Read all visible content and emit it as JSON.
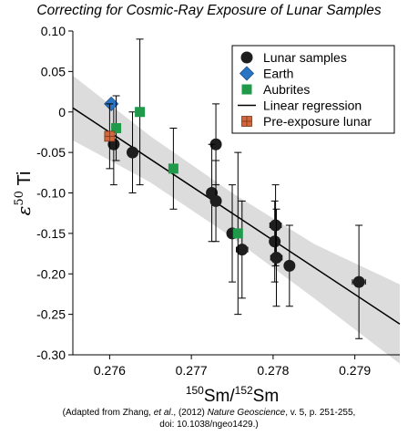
{
  "chart_data": {
    "type": "scatter",
    "title": "Correcting for Cosmic-Ray Exposure of Lunar Samples",
    "ylabel": "ε50Ti",
    "ylabel_parts": {
      "base": "ε",
      "sup": "50",
      "tail": "Ti"
    },
    "xlabel": "150Sm/152Sm",
    "xlabel_parts": {
      "sup1": "150",
      "mid": "Sm/",
      "sup2": "152",
      "tail": "Sm"
    },
    "xlim": [
      0.27555,
      0.27955
    ],
    "ylim": [
      -0.3,
      0.1
    ],
    "x_ticks": [
      "0.276",
      "0.277",
      "0.278",
      "0.279"
    ],
    "x_tick_values": [
      0.276,
      0.277,
      0.278,
      0.279
    ],
    "y_ticks": [
      "0.10",
      "0.05",
      "0",
      "-0.05",
      "-0.10",
      "-0.15",
      "-0.20",
      "-0.25",
      "-0.30"
    ],
    "y_tick_values": [
      0.1,
      0.05,
      0,
      -0.05,
      -0.1,
      -0.15,
      -0.2,
      -0.25,
      -0.3
    ],
    "legend_position": "top-right",
    "legend": [
      {
        "label": "Lunar samples",
        "marker": "circle",
        "color": "#1e1e1e"
      },
      {
        "label": "Earth",
        "marker": "diamond",
        "color": "#2a74c4"
      },
      {
        "label": "Aubrites",
        "marker": "square",
        "color": "#1f9a4a"
      },
      {
        "label": "Linear regression",
        "marker": "line",
        "color": "#000000"
      },
      {
        "label": "Pre-exposure lunar",
        "marker": "gridsquare",
        "color": "#d2673e"
      }
    ],
    "regression": {
      "x": [
        0.27555,
        0.27955
      ],
      "y": [
        0.005,
        -0.262
      ]
    },
    "confidence_band": {
      "x": [
        0.27555,
        0.2765,
        0.2775,
        0.2785,
        0.27955
      ],
      "upper": [
        0.045,
        -0.03,
        -0.1,
        -0.163,
        -0.213
      ],
      "lower": [
        -0.035,
        -0.087,
        -0.155,
        -0.23,
        -0.311
      ],
      "color": "#dcdcdc"
    },
    "series": [
      {
        "name": "Lunar samples",
        "marker": "circle",
        "color": "#1e1e1e",
        "points": [
          {
            "x": 0.27605,
            "y": -0.04,
            "yerr": 0.05
          },
          {
            "x": 0.27628,
            "y": -0.05,
            "yerr": 0.05,
            "xerr": 6e-05
          },
          {
            "x": 0.2773,
            "y": -0.04,
            "yerr": 0.05
          },
          {
            "x": 0.27725,
            "y": -0.1,
            "yerr": 0.06
          },
          {
            "x": 0.2773,
            "y": -0.11,
            "yerr": 0.05
          },
          {
            "x": 0.2775,
            "y": -0.15,
            "yerr": 0.06
          },
          {
            "x": 0.27762,
            "y": -0.17,
            "yerr": 0.06,
            "xerr": 7e-05
          },
          {
            "x": 0.27802,
            "y": -0.16,
            "yerr": 0.05
          },
          {
            "x": 0.27803,
            "y": -0.14,
            "yerr": 0.05,
            "xerr": 7e-05
          },
          {
            "x": 0.27804,
            "y": -0.18,
            "yerr": 0.06,
            "xerr": 7e-05
          },
          {
            "x": 0.2782,
            "y": -0.19,
            "yerr": 0.05
          },
          {
            "x": 0.27905,
            "y": -0.21,
            "yerr": 0.07,
            "xerr": 8e-05
          }
        ]
      },
      {
        "name": "Earth",
        "marker": "diamond",
        "color": "#2a74c4",
        "points": [
          {
            "x": 0.27602,
            "y": 0.01,
            "yerr": 0.004,
            "xerr": 5e-05
          }
        ]
      },
      {
        "name": "Aubrites",
        "marker": "square",
        "color": "#1f9a4a",
        "points": [
          {
            "x": 0.27608,
            "y": -0.02,
            "yerr": 0.04
          },
          {
            "x": 0.27637,
            "y": 0.0,
            "yerr": 0.09
          },
          {
            "x": 0.27678,
            "y": -0.07,
            "yerr": 0.05
          },
          {
            "x": 0.27757,
            "y": -0.15,
            "yerr": 0.1
          }
        ]
      },
      {
        "name": "Pre-exposure lunar",
        "marker": "gridsquare",
        "color": "#d2673e",
        "points": [
          {
            "x": 0.276,
            "y": -0.03,
            "yerr": 0.04
          }
        ]
      }
    ]
  },
  "caption": {
    "line1_prefix": "(Adapted from Zhang, ",
    "line1_etal": "et al",
    "line1_mid": "., (2012) ",
    "line1_journal": "Nature Geoscience",
    "line1_suffix": ", v. 5, p. 251-255,",
    "line2": "doi: 10.1038/ngeo1429.)"
  }
}
